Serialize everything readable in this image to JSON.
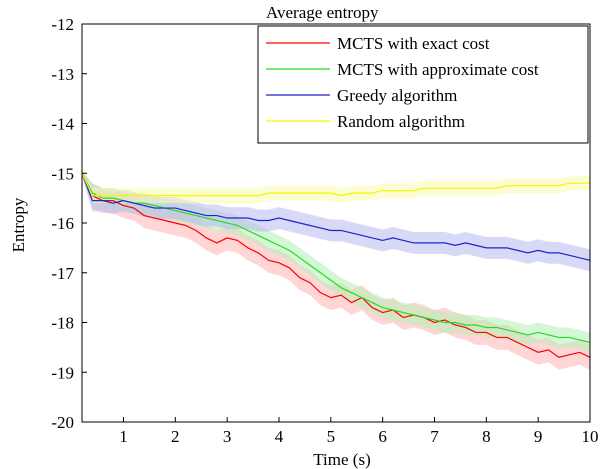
{
  "chart_data": {
    "type": "line",
    "title": "Average entropy",
    "xlabel": "Time (s)",
    "ylabel": "Entropy",
    "xlim": [
      0.2,
      10
    ],
    "ylim": [
      -20,
      -12
    ],
    "xticks": [
      1,
      2,
      3,
      4,
      5,
      6,
      7,
      8,
      9,
      10
    ],
    "yticks": [
      -20,
      -19,
      -18,
      -17,
      -16,
      -15,
      -14,
      -13,
      -12
    ],
    "legend_position": "top-right",
    "grid": false,
    "x": [
      0.2,
      0.4,
      0.6,
      0.8,
      1.0,
      1.2,
      1.4,
      1.6,
      1.8,
      2.0,
      2.2,
      2.4,
      2.6,
      2.8,
      3.0,
      3.2,
      3.4,
      3.6,
      3.8,
      4.0,
      4.2,
      4.4,
      4.6,
      4.8,
      5.0,
      5.2,
      5.4,
      5.6,
      5.8,
      6.0,
      6.2,
      6.4,
      6.6,
      6.8,
      7.0,
      7.2,
      7.4,
      7.6,
      7.8,
      8.0,
      8.2,
      8.4,
      8.6,
      8.8,
      9.0,
      9.2,
      9.4,
      9.6,
      9.8,
      10.0
    ],
    "series": [
      {
        "name": "MCTS with exact cost",
        "color": "#ff0000",
        "band_color": "#ffb3b3",
        "values": [
          -15.0,
          -15.45,
          -15.55,
          -15.55,
          -15.65,
          -15.7,
          -15.85,
          -15.9,
          -15.95,
          -16.0,
          -16.05,
          -16.15,
          -16.3,
          -16.4,
          -16.3,
          -16.35,
          -16.5,
          -16.6,
          -16.75,
          -16.8,
          -16.9,
          -17.1,
          -17.2,
          -17.4,
          -17.5,
          -17.45,
          -17.6,
          -17.5,
          -17.7,
          -17.8,
          -17.75,
          -17.9,
          -17.85,
          -17.9,
          -18.0,
          -17.95,
          -18.05,
          -18.1,
          -18.2,
          -18.2,
          -18.3,
          -18.3,
          -18.4,
          -18.5,
          -18.6,
          -18.55,
          -18.7,
          -18.65,
          -18.6,
          -18.7
        ],
        "band": 0.25
      },
      {
        "name": "MCTS with approximate cost",
        "color": "#22dd22",
        "band_color": "#b3f0b3",
        "values": [
          -15.0,
          -15.4,
          -15.5,
          -15.5,
          -15.55,
          -15.6,
          -15.6,
          -15.65,
          -15.7,
          -15.75,
          -15.8,
          -15.85,
          -15.9,
          -15.95,
          -16.0,
          -16.05,
          -16.15,
          -16.25,
          -16.35,
          -16.45,
          -16.55,
          -16.7,
          -16.85,
          -17.0,
          -17.15,
          -17.3,
          -17.4,
          -17.5,
          -17.6,
          -17.7,
          -17.75,
          -17.8,
          -17.85,
          -17.9,
          -17.95,
          -18.0,
          -18.0,
          -18.05,
          -18.05,
          -18.1,
          -18.1,
          -18.15,
          -18.2,
          -18.25,
          -18.2,
          -18.25,
          -18.3,
          -18.3,
          -18.35,
          -18.4
        ],
        "band": 0.2
      },
      {
        "name": "Greedy algorithm",
        "color": "#2222cc",
        "band_color": "#b8b8f0",
        "values": [
          -15.0,
          -15.55,
          -15.55,
          -15.6,
          -15.55,
          -15.6,
          -15.65,
          -15.7,
          -15.7,
          -15.7,
          -15.75,
          -15.8,
          -15.85,
          -15.85,
          -15.9,
          -15.9,
          -15.9,
          -15.95,
          -15.95,
          -15.9,
          -15.95,
          -16.0,
          -16.05,
          -16.1,
          -16.15,
          -16.15,
          -16.2,
          -16.25,
          -16.3,
          -16.35,
          -16.3,
          -16.35,
          -16.4,
          -16.4,
          -16.4,
          -16.4,
          -16.45,
          -16.4,
          -16.45,
          -16.5,
          -16.5,
          -16.5,
          -16.55,
          -16.6,
          -16.55,
          -16.6,
          -16.6,
          -16.65,
          -16.7,
          -16.75
        ],
        "band": 0.22
      },
      {
        "name": "Random algorithm",
        "color": "#f5f500",
        "band_color": "#fbfbb0",
        "values": [
          -15.0,
          -15.45,
          -15.45,
          -15.45,
          -15.45,
          -15.45,
          -15.45,
          -15.45,
          -15.45,
          -15.45,
          -15.45,
          -15.45,
          -15.45,
          -15.45,
          -15.45,
          -15.45,
          -15.45,
          -15.45,
          -15.4,
          -15.4,
          -15.4,
          -15.4,
          -15.4,
          -15.4,
          -15.4,
          -15.45,
          -15.4,
          -15.4,
          -15.4,
          -15.35,
          -15.35,
          -15.35,
          -15.35,
          -15.3,
          -15.3,
          -15.3,
          -15.3,
          -15.3,
          -15.3,
          -15.3,
          -15.3,
          -15.25,
          -15.25,
          -15.25,
          -15.25,
          -15.25,
          -15.25,
          -15.2,
          -15.2,
          -15.2
        ],
        "band": 0.15
      }
    ]
  }
}
